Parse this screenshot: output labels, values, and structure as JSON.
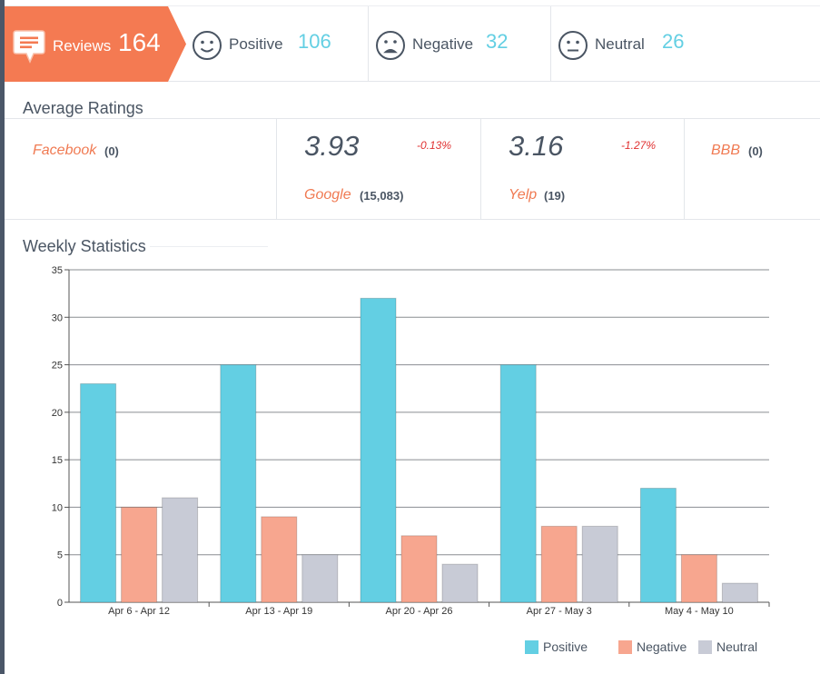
{
  "summary": {
    "reviews": {
      "label": "Reviews",
      "count": "164"
    },
    "positive": {
      "label": "Positive",
      "count": "106"
    },
    "negative": {
      "label": "Negative",
      "count": "32"
    },
    "neutral": {
      "label": "Neutral",
      "count": "26"
    }
  },
  "ratings": {
    "title": "Average Ratings",
    "sources": [
      {
        "name": "Facebook",
        "count": "(0)",
        "score": "",
        "delta": ""
      },
      {
        "name": "Google",
        "count": "(15,083)",
        "score": "3.93",
        "delta": "-0.13%"
      },
      {
        "name": "Yelp",
        "count": "(19)",
        "score": "3.16",
        "delta": "-1.27%"
      },
      {
        "name": "BBB",
        "count": "(0)",
        "score": "",
        "delta": ""
      }
    ]
  },
  "colors": {
    "accent": "#f47a52",
    "positive": "#63cfe3",
    "negative": "#f7a68f",
    "neutral": "#c8cbd6",
    "delta": "#e03232"
  },
  "icons": {
    "reviews": "speech-bubble-icon",
    "positive": "smiley-face-icon",
    "negative": "frown-face-icon",
    "neutral": "neutral-face-icon"
  },
  "chart_data": {
    "type": "bar",
    "title": "Weekly Statistics",
    "categories": [
      "Apr 6 - Apr 12",
      "Apr 13 - Apr 19",
      "Apr 20 - Apr 26",
      "Apr 27 - May 3",
      "May 4 - May 10"
    ],
    "series": [
      {
        "name": "Positive",
        "values": [
          23,
          25,
          32,
          25,
          12
        ]
      },
      {
        "name": "Negative",
        "values": [
          10,
          9,
          7,
          8,
          5
        ]
      },
      {
        "name": "Neutral",
        "values": [
          11,
          5,
          4,
          8,
          2
        ]
      }
    ],
    "xlabel": "",
    "ylabel": "",
    "ylim": [
      0,
      35
    ],
    "yticks": [
      0,
      5,
      10,
      15,
      20,
      25,
      30,
      35
    ],
    "grid": true,
    "legend": "bottom-right"
  }
}
